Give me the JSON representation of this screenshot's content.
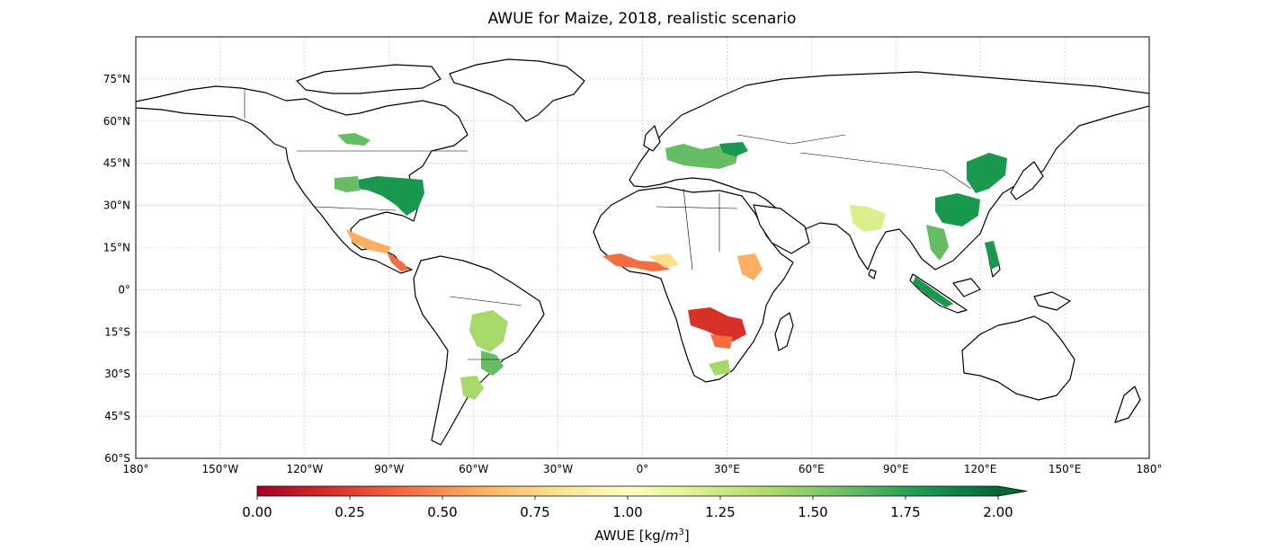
{
  "title": "AWUE for Maize, 2018, realistic scenario",
  "map": {
    "lat_ticks": [
      "75°N",
      "60°N",
      "45°N",
      "30°N",
      "15°N",
      "0°",
      "15°S",
      "30°S",
      "45°S",
      "60°S"
    ],
    "lon_ticks": [
      "180°",
      "150°W",
      "120°W",
      "90°W",
      "60°W",
      "30°W",
      "0°",
      "30°E",
      "60°E",
      "90°E",
      "120°E",
      "150°E",
      "180°"
    ],
    "lat_values": [
      75,
      60,
      45,
      30,
      15,
      0,
      -15,
      -30,
      -45,
      -60
    ],
    "lon_values": [
      -180,
      -150,
      -120,
      -90,
      -60,
      -30,
      0,
      30,
      60,
      90,
      120,
      150,
      180
    ],
    "extent": {
      "lon": [
        -180,
        180
      ],
      "lat": [
        -60,
        90
      ]
    },
    "gridlines": true
  },
  "colorbar": {
    "label_prefix": "AWUE [kg/",
    "label_unit": "m",
    "label_exp": "3",
    "label_suffix": "]",
    "ticks": [
      "0.00",
      "0.25",
      "0.50",
      "0.75",
      "1.00",
      "1.25",
      "1.50",
      "1.75",
      "2.00"
    ],
    "tick_values": [
      0.0,
      0.25,
      0.5,
      0.75,
      1.0,
      1.25,
      1.5,
      1.75,
      2.0
    ],
    "range": [
      0.0,
      2.0
    ],
    "extend": "max",
    "colormap": "RdYlGn",
    "colors": [
      "#a50026",
      "#d73027",
      "#f46d43",
      "#fdae61",
      "#fee08b",
      "#ffffbf",
      "#d9ef8b",
      "#a6d96a",
      "#66bd63",
      "#1a9850",
      "#006837"
    ]
  }
}
